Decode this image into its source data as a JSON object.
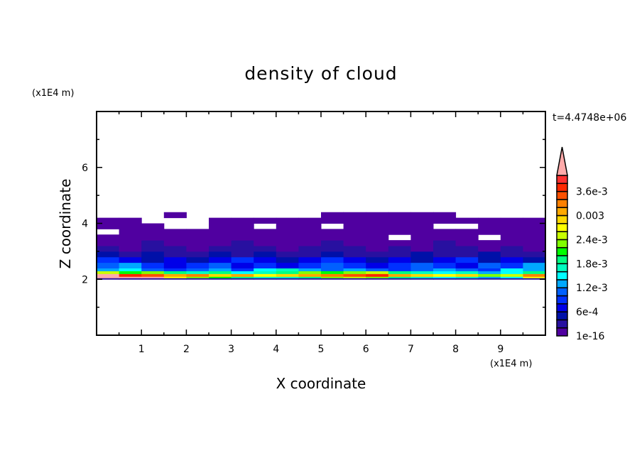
{
  "chart_data": {
    "type": "heatmap",
    "title": "density of cloud",
    "xlabel": "X coordinate",
    "ylabel": "Z coordinate",
    "x_unit": "(x1E4 m)",
    "y_unit": "(x1E4 m)",
    "time_label": "t=4.4748e+06",
    "xlim": [
      0,
      10
    ],
    "ylim": [
      0,
      8
    ],
    "x_ticks": [
      1,
      2,
      3,
      4,
      5,
      6,
      7,
      8,
      9
    ],
    "x_tick_labels": [
      "1",
      "2",
      "3",
      "4",
      "5",
      "6",
      "7",
      "8",
      "9"
    ],
    "y_ticks": [
      2,
      4,
      6
    ],
    "y_tick_labels": [
      "2",
      "4",
      "6"
    ],
    "grid": false,
    "colorbar": {
      "levels_min": 0,
      "levels_step": 0.0002,
      "overflow_color": "#ffaaaa",
      "colors": [
        "#5000a0",
        "#2810a0",
        "#0010a8",
        "#0000e8",
        "#0030ff",
        "#0060ff",
        "#00a8ff",
        "#00ffff",
        "#00ffc0",
        "#00ff80",
        "#00ff00",
        "#80ff00",
        "#c8ff00",
        "#ffff00",
        "#ffd800",
        "#ffa800",
        "#ff8000",
        "#ff5000",
        "#ff2800",
        "#ff3030"
      ],
      "tick_labels": [
        "1e-16",
        "6e-4",
        "1.2e-3",
        "1.8e-3",
        "2.4e-3",
        "0.003",
        "3.6e-3"
      ],
      "tick_levels": [
        0,
        3,
        6,
        9,
        12,
        15,
        18
      ]
    },
    "x_edges": [
      0,
      0.5,
      1,
      1.5,
      2,
      2.5,
      3,
      3.5,
      4,
      4.5,
      5,
      5.5,
      6,
      6.5,
      7,
      7.5,
      8,
      8.5,
      9,
      9.5,
      10
    ],
    "z_edges": [
      2.0,
      2.05,
      2.1,
      2.2,
      2.3,
      2.4,
      2.6,
      2.8,
      3.0,
      3.2,
      3.4,
      3.6,
      3.8,
      4.0,
      4.2,
      4.4
    ],
    "values": [
      [
        0.0003,
        0.0003,
        0.0003,
        0.0003,
        0.0003,
        0.0003,
        0.0003,
        0.0003,
        0.0003,
        0.0003,
        0.0003,
        0.0003,
        0.0003,
        0.0003,
        0.0003,
        0.0003,
        0.0003,
        0.0003,
        0.0003,
        0.0003
      ],
      [
        0.005,
        0.005,
        0.004,
        0.0026,
        0.0022,
        0.002,
        0.0018,
        0.0016,
        0.0016,
        0.0018,
        0.0022,
        0.0024,
        0.0022,
        0.0018,
        0.0016,
        0.0014,
        0.0016,
        0.0012,
        0.0014,
        0.0026
      ],
      [
        0.0042,
        0.0036,
        0.0034,
        0.003,
        0.0032,
        0.0028,
        0.003,
        0.0026,
        0.0028,
        0.003,
        0.0032,
        0.0034,
        0.0036,
        0.003,
        0.0028,
        0.0026,
        0.0028,
        0.0022,
        0.0024,
        0.0032
      ],
      [
        0.0024,
        0.002,
        0.0022,
        0.0018,
        0.0016,
        0.0018,
        0.0014,
        0.0016,
        0.0018,
        0.0022,
        0.002,
        0.0022,
        0.0024,
        0.0018,
        0.0016,
        0.0014,
        0.0016,
        0.0012,
        0.0014,
        0.0018
      ],
      [
        0.0012,
        0.0014,
        0.001,
        0.0008,
        0.001,
        0.0012,
        0.0008,
        0.0014,
        0.0016,
        0.0012,
        0.001,
        0.0012,
        0.001,
        0.0008,
        0.001,
        0.0012,
        0.001,
        0.0008,
        0.0014,
        0.0012
      ],
      [
        0.001,
        0.0012,
        0.0008,
        0.0006,
        0.0008,
        0.001,
        0.0006,
        0.0008,
        0.0006,
        0.0008,
        0.001,
        0.0008,
        0.0006,
        0.0008,
        0.001,
        0.0008,
        0.0006,
        0.001,
        0.0008,
        0.0012
      ],
      [
        0.0008,
        0.0006,
        0.0004,
        0.0006,
        0.0004,
        0.0006,
        0.0008,
        0.0006,
        0.0004,
        0.0006,
        0.0008,
        0.0006,
        0.0004,
        0.0006,
        0.0004,
        0.0006,
        0.0008,
        0.0004,
        0.0006,
        0.0004
      ],
      [
        0.0004,
        0.0003,
        0.0004,
        0.0002,
        0.0003,
        0.0004,
        0.0003,
        0.0004,
        0.0002,
        0.0003,
        0.0004,
        0.0003,
        0.0002,
        0.0003,
        0.0004,
        0.0003,
        0.0002,
        0.0004,
        0.0003,
        0.0002
      ],
      [
        0.0002,
        0.0001,
        0.0003,
        0.0002,
        0.0001,
        0.0002,
        0.0003,
        0.0002,
        0.0001,
        0.0002,
        0.0003,
        0.0002,
        0.0001,
        0.0002,
        0.0001,
        0.0002,
        0.0003,
        0.0001,
        0.0002,
        0.0001
      ],
      [
        0.0001,
        0.0001,
        0.0002,
        0.0001,
        0.0001,
        0.0001,
        0.0002,
        0.0001,
        0.0001,
        0.0001,
        0.0002,
        0.0001,
        0.0001,
        0.0001,
        0.0001,
        0.0002,
        0.0001,
        0.0001,
        0.0001,
        0.0001
      ],
      [
        0.0001,
        0.0001,
        0.0001,
        0.0001,
        0.0001,
        0.0001,
        0.0001,
        0.0001,
        0.0001,
        0.0001,
        0.0001,
        0.0001,
        0.0001,
        null,
        0.0001,
        0.0001,
        0.0001,
        null,
        0.0001,
        0.0001
      ],
      [
        null,
        0.0001,
        0.0001,
        0.0001,
        0.0001,
        0.0001,
        0.0001,
        0.0001,
        0.0001,
        0.0001,
        0.0001,
        0.0001,
        0.0001,
        0.0001,
        0.0001,
        0.0001,
        0.0001,
        0.0001,
        0.0001,
        0.0001
      ],
      [
        0.0001,
        0.0001,
        0.0001,
        null,
        null,
        0.0001,
        0.0001,
        null,
        0.0001,
        0.0001,
        null,
        0.0001,
        0.0001,
        0.0001,
        0.0001,
        null,
        null,
        0.0001,
        0.0001,
        0.0001
      ],
      [
        0.0001,
        0.0001,
        null,
        null,
        null,
        0.0001,
        0.0001,
        0.0001,
        0.0001,
        0.0001,
        0.0001,
        0.0001,
        0.0001,
        0.0001,
        0.0001,
        0.0001,
        0.0001,
        0.0001,
        0.0001,
        0.0001
      ],
      [
        null,
        null,
        null,
        0.0001,
        null,
        null,
        null,
        null,
        null,
        null,
        0.0001,
        0.0001,
        0.0001,
        0.0001,
        0.0001,
        0.0001,
        null,
        null,
        null,
        null
      ]
    ]
  }
}
